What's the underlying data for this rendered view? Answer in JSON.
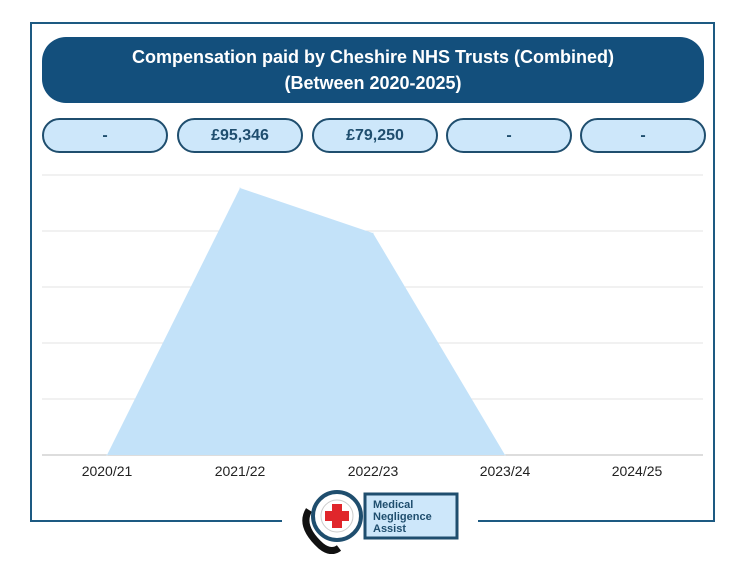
{
  "title": {
    "line1": "Compensation paid by Cheshire NHS Trusts (Combined)",
    "line2": "(Between 2020-2025)"
  },
  "pills": [
    "-",
    "£95,346",
    "£79,250",
    "-",
    "-"
  ],
  "chart_data": {
    "type": "area",
    "categories": [
      "2020/21",
      "2021/22",
      "2022/23",
      "2023/24",
      "2024/25"
    ],
    "values": [
      0,
      95346,
      79250,
      0,
      null
    ],
    "ylim": [
      0,
      100000
    ],
    "grid": true,
    "fill_color": "#c3e2f9"
  },
  "logo": {
    "text": [
      "Medical",
      "Negligence",
      "Assist"
    ]
  }
}
